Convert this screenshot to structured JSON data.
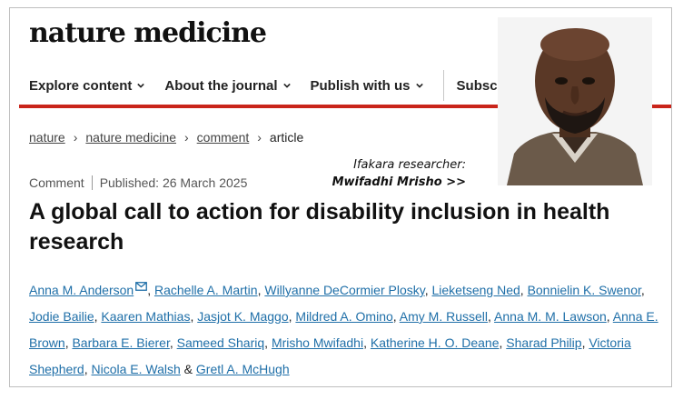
{
  "brand": {
    "logo_text": "nature medicine"
  },
  "nav": {
    "items": [
      {
        "label": "Explore content"
      },
      {
        "label": "About the journal"
      },
      {
        "label": "Publish with us"
      }
    ],
    "partial_item": "Subsc"
  },
  "breadcrumb": {
    "items": [
      "nature",
      "nature medicine",
      "comment"
    ],
    "current": "article"
  },
  "article": {
    "type": "Comment",
    "published": "Published: 26 March 2025",
    "title": "A global call to action for disability inclusion in health research",
    "authors": [
      "Anna M. Anderson",
      "Rachelle A. Martin",
      "Willyanne DeCormier Plosky",
      "Lieketseng Ned",
      "Bonnielin K. Swenor",
      "Jodie Bailie",
      "Kaaren Mathias",
      "Jasjot K. Maggo",
      "Mildred A. Omino",
      "Amy M. Russell",
      "Anna M. M. Lawson",
      "Anna E. Brown",
      "Barbara E. Bierer",
      "Sameed Shariq",
      "Mrisho Mwifadhi",
      "Katherine H. O. Deane",
      "Sharad Philip",
      "Victoria Shepherd",
      "Nicola E. Walsh",
      "Gretl A. McHugh"
    ],
    "separator": ", ",
    "last_joiner": " & "
  },
  "overlay": {
    "caption_line1": "Ifakara researcher:",
    "caption_line2": "Mwifadhi Mrisho >>"
  },
  "colors": {
    "accent_red": "#c9241a",
    "link_blue": "#1f6fa8"
  }
}
